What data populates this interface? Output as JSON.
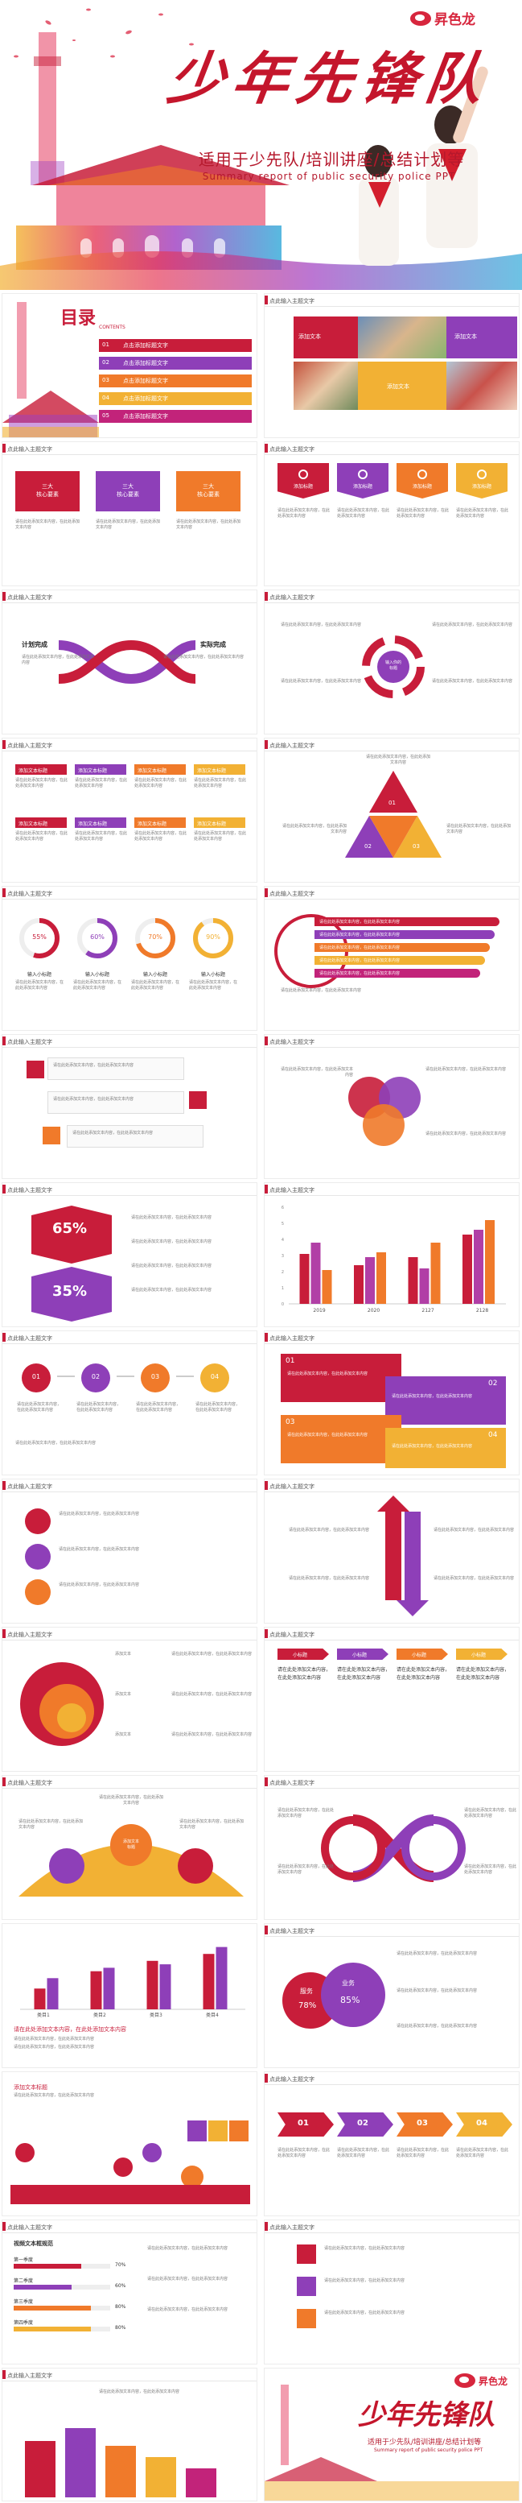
{
  "brand": {
    "name": "昇色龙",
    "color_primary": "#c81d3a",
    "color_orange": "#f07a2a",
    "color_purple": "#8e3fb8",
    "color_yellow": "#f4b52a",
    "color_magenta": "#c2237a"
  },
  "hero": {
    "title": "少年先锋队",
    "subtitle": "适用于少先队/培训讲座/总结计划等",
    "subtitle_en": "Summary report of public security police PPT"
  },
  "common": {
    "slide_header": "点此输入主题文字",
    "placeholder_line": "点此输入标题文字",
    "click_text": "添加文本",
    "body": "添加文本内容",
    "body_long": "请在此处添加文本内容，在此处添加文本内容",
    "progress_labels": [
      "输入小标题",
      "输入小标题",
      "输入小标题",
      "输入小标题"
    ]
  },
  "toc": {
    "title": "目录",
    "title_en": "CONTENTS",
    "items": [
      {
        "num": "01",
        "label": "点击添加标题文字"
      },
      {
        "num": "02",
        "label": "点击添加标题文字"
      },
      {
        "num": "03",
        "label": "点击添加标题文字"
      },
      {
        "num": "04",
        "label": "点击添加标题文字"
      },
      {
        "num": "05",
        "label": "点击添加标题文字"
      }
    ]
  },
  "photo_slide": {
    "captions": [
      "添加文本",
      "添加文本",
      "添加文本"
    ]
  },
  "triple_cards": {
    "labels": [
      "三大\n核心要素",
      "三大\n核心要素",
      "三大\n核心要素"
    ]
  },
  "icon_tabs": {
    "labels": [
      "添加标题",
      "添加标题",
      "添加标题",
      "添加标题"
    ]
  },
  "plan_slide": {
    "left": "计划完成",
    "right": "实际完成"
  },
  "circle_slide": {
    "center": "输入你的\n标题"
  },
  "grid_tags": {
    "label": "添加文本标题"
  },
  "triangle_slide": {
    "nums": [
      "01",
      "02",
      "03"
    ]
  },
  "donuts": {
    "values": [
      "55%",
      "60%",
      "70%",
      "90%"
    ]
  },
  "ribbon_list": {
    "count": 5
  },
  "pct_slide": {
    "top": "65%",
    "bottom": "35%"
  },
  "bar_chart": {
    "categories": [
      "2019",
      "2020",
      "2127",
      "2128"
    ],
    "series": [
      {
        "color": "#c81d3a",
        "values": [
          3.1,
          2.4,
          2.9,
          4.3
        ]
      },
      {
        "color": "#b13fa6",
        "values": [
          3.8,
          2.9,
          2.2,
          4.6
        ]
      },
      {
        "color": "#f07a2a",
        "values": [
          2.1,
          3.2,
          3.8,
          5.2
        ]
      }
    ],
    "ylim": [
      0,
      6
    ]
  },
  "steps4": {
    "nums": [
      "01",
      "02",
      "03",
      "04"
    ]
  },
  "small_tabs": {
    "labels": [
      "小标题",
      "小标题",
      "小标题",
      "小标题"
    ]
  },
  "mountain": {
    "caption": "添加文本\n标题"
  },
  "bar_chart2": {
    "categories": [
      "类目1",
      "类目2",
      "类目3",
      "类目4"
    ],
    "series": [
      {
        "color": "#c81d3a",
        "values": [
          30,
          55,
          70,
          80
        ]
      },
      {
        "color": "#8e3fb8",
        "values": [
          45,
          60,
          65,
          90
        ]
      }
    ]
  },
  "bubble_pct": {
    "labels": [
      "服务",
      "业务"
    ],
    "values": [
      "78%",
      "85%"
    ]
  },
  "chevron_steps": {
    "nums": [
      "01",
      "02",
      "03",
      "04"
    ]
  },
  "hbar_slide": {
    "title": "视频文本框规范",
    "rows": [
      {
        "label": "第一季度",
        "value": "70%"
      },
      {
        "label": "第二季度",
        "value": "60%"
      },
      {
        "label": "第三季度",
        "value": "80%"
      },
      {
        "label": "第四季度",
        "value": "80%"
      }
    ]
  },
  "last_slide_caption": {
    "title": "添加文本标题"
  },
  "end": {
    "title": "少年先锋队",
    "subtitle": "适用于少先队/培训讲座/总结计划等",
    "subtitle_en": "Summary report of public security police PPT"
  }
}
